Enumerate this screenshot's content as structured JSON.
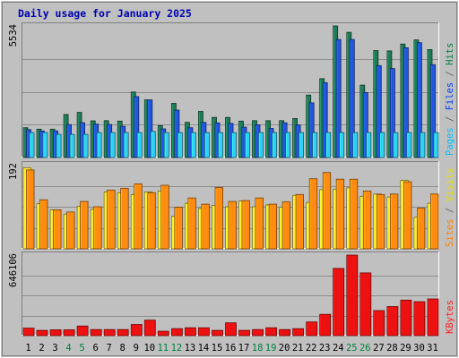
{
  "chart_data": {
    "type": "bar",
    "title": "Daily usage for January 2025",
    "days": [
      "1",
      "2",
      "3",
      "4",
      "5",
      "6",
      "7",
      "8",
      "9",
      "10",
      "11",
      "12",
      "13",
      "14",
      "15",
      "16",
      "17",
      "18",
      "19",
      "20",
      "21",
      "22",
      "23",
      "24",
      "25",
      "26",
      "27",
      "28",
      "29",
      "30",
      "31"
    ],
    "weekend_days": [
      "4",
      "5",
      "11",
      "12",
      "18",
      "19",
      "25",
      "26"
    ],
    "panels": [
      {
        "id": "hits",
        "max_label": "5534",
        "ymax": 5534,
        "right_labels": [
          {
            "text": "Pages",
            "color": "#00c0ff"
          },
          {
            "text": " / ",
            "color": "#666666"
          },
          {
            "text": "Files",
            "color": "#0040ff"
          },
          {
            "text": " / ",
            "color": "#666666"
          },
          {
            "text": "Hits",
            "color": "#008040"
          }
        ],
        "series": [
          {
            "name": "Hits",
            "color": "#1f7a55",
            "values": [
              1252,
              1194,
              1194,
              1812,
              1899,
              1543,
              1552,
              1533,
              2754,
              2425,
              1339,
              2276,
              1480,
              1938,
              1687,
              1687,
              1532,
              1552,
              1552,
              1552,
              1640,
              2629,
              3317,
              5534,
              5265,
              3047,
              4498,
              4484,
              4773,
              4946,
              4541
            ]
          },
          {
            "name": "Files",
            "color": "#2256e0",
            "values": [
              1175,
              1117,
              1117,
              1387,
              1465,
              1408,
              1388,
              1315,
              2562,
              2424,
              1204,
              1997,
              1253,
              1476,
              1456,
              1437,
              1278,
              1379,
              1224,
              1462,
              1369,
              2300,
              3152,
              4965,
              4965,
              2734,
              3867,
              3742,
              4620,
              4830,
              3907
            ]
          },
          {
            "name": "Pages",
            "color": "#2ed0f4",
            "values": [
              1050,
              1050,
              975,
              975,
              975,
              1050,
              1050,
              1050,
              1050,
              1100,
              1050,
              1050,
              1050,
              1050,
              1050,
              1050,
              1050,
              1050,
              1050,
              1050,
              1050,
              1050,
              1050,
              1050,
              1050,
              1050,
              1050,
              1050,
              1050,
              1050,
              1050
            ]
          }
        ]
      },
      {
        "id": "visits",
        "max_label": "192",
        "ymax": 192,
        "right_labels": [
          {
            "text": "Sites",
            "color": "#ff8000"
          },
          {
            "text": " / ",
            "color": "#666666"
          },
          {
            "text": "Visits",
            "color": "#e0e000"
          }
        ],
        "series": [
          {
            "name": "Visits",
            "color": "#ffe830",
            "values": [
              185,
              103,
              89,
              79,
              97,
              90,
              130,
              128,
              124,
              130,
              132,
              74,
              104,
              92,
              99,
              96,
              109,
              96,
              100,
              95,
              122,
              106,
              135,
              136,
              139,
              120,
              125,
              118,
              156,
              72,
              104
            ]
          },
          {
            "name": "Sites",
            "color": "#ff8c10",
            "values": [
              180,
              112,
              89,
              84,
              108,
              96,
              134,
              138,
              148,
              128,
              145,
              95,
              116,
              102,
              140,
              108,
              110,
              116,
              102,
              107,
              124,
              160,
              174,
              159,
              159,
              132,
              124,
              125,
              153,
              93,
              125
            ]
          }
        ]
      },
      {
        "id": "kbytes",
        "max_label": "646106",
        "ymax": 646106,
        "right_labels": [
          {
            "text": "KBytes",
            "color": "#ff2020"
          }
        ],
        "series": [
          {
            "name": "KBytes",
            "color": "#ee1111",
            "values": [
              60000,
              42000,
              47000,
              47000,
              77000,
              49000,
              49000,
              49000,
              90000,
              124000,
              35000,
              56000,
              63000,
              63000,
              42000,
              103000,
              42000,
              49000,
              63000,
              49000,
              56000,
              110000,
              171000,
              539000,
              646106,
              503000,
              201000,
              233000,
              285000,
              272000,
              294000
            ]
          }
        ]
      }
    ]
  }
}
